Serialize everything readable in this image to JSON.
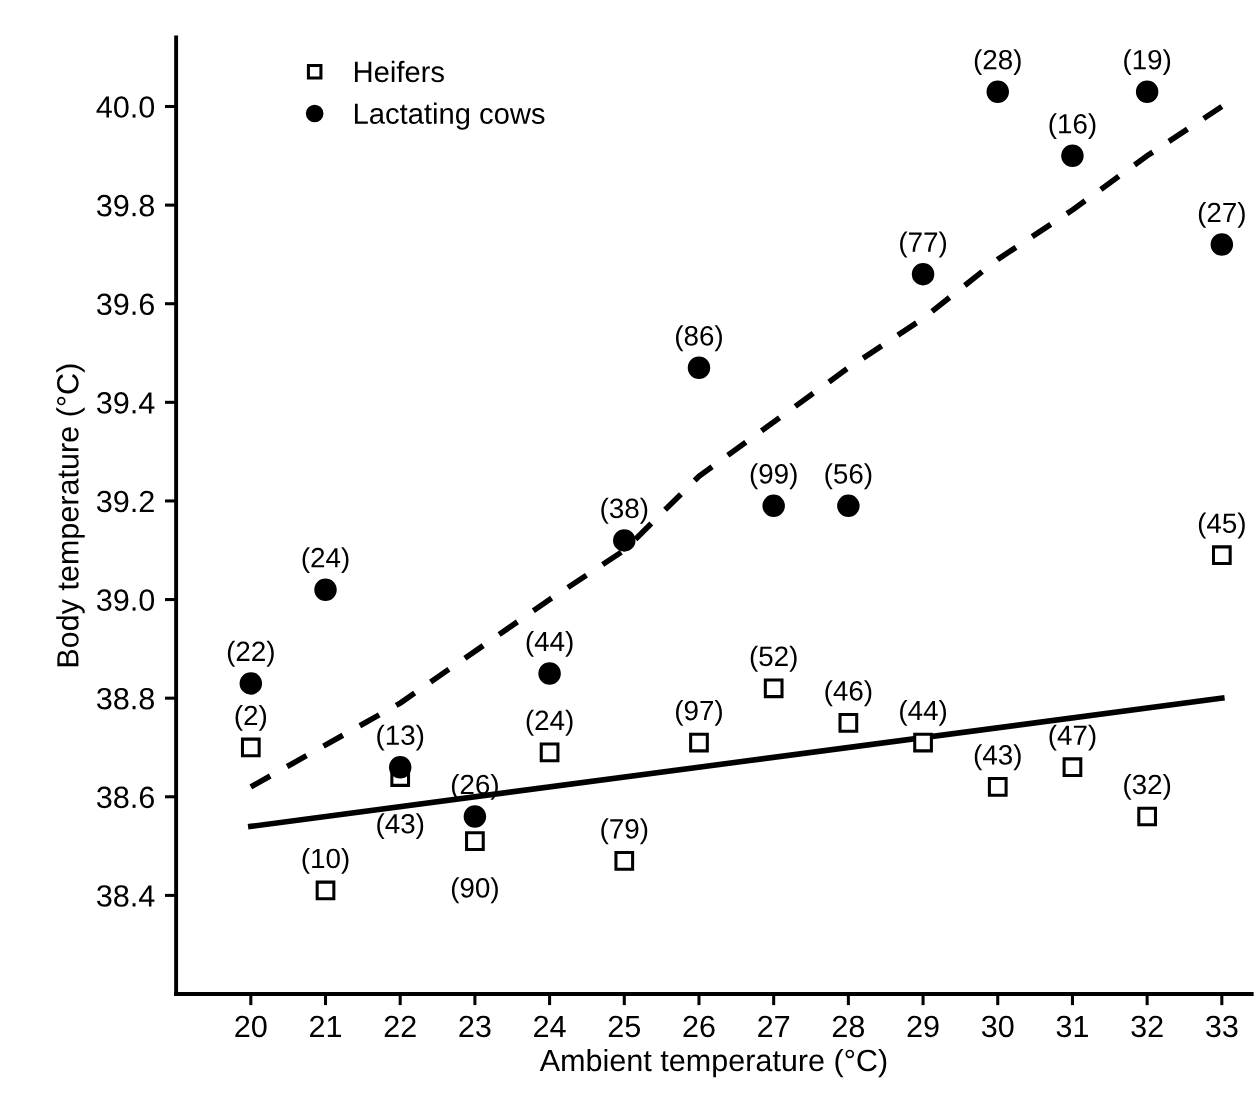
{
  "chart_data": {
    "type": "scatter",
    "xlabel": "Ambient temperature (°C)",
    "ylabel": "Body temperature (°C)",
    "xlim": [
      19,
      33.4
    ],
    "ylim": [
      38.2,
      40.14
    ],
    "xticks": [
      20,
      21,
      22,
      23,
      24,
      25,
      26,
      27,
      28,
      29,
      30,
      31,
      32,
      33
    ],
    "yticks": [
      {
        "value": 38.4,
        "label": "38.4"
      },
      {
        "value": 38.6,
        "label": "38.6"
      },
      {
        "value": 38.8,
        "label": "38.8"
      },
      {
        "value": 39.0,
        "label": "39.0"
      },
      {
        "value": 39.2,
        "label": "39.2"
      },
      {
        "value": 39.4,
        "label": "39.4"
      },
      {
        "value": 39.6,
        "label": "39.6"
      },
      {
        "value": 39.8,
        "label": "39.8"
      },
      {
        "value": 40.0,
        "label": "40.0"
      }
    ],
    "grid": false,
    "legend": "top left",
    "series": [
      {
        "name": "Heifers",
        "marker": "square",
        "color": "#000000",
        "x": [
          20,
          21,
          22,
          23,
          24,
          25,
          26,
          27,
          28,
          29,
          30,
          31,
          32,
          33
        ],
        "values": [
          38.7,
          38.41,
          38.64,
          38.51,
          38.69,
          38.47,
          38.71,
          38.82,
          38.75,
          38.71,
          38.62,
          38.66,
          38.56,
          39.09
        ]
      },
      {
        "name": "Lactating cows",
        "marker": "circle",
        "color": "#000000",
        "x": [
          20,
          21,
          22,
          23,
          24,
          25,
          26,
          27,
          28,
          29,
          30,
          31,
          32,
          33
        ],
        "values": [
          38.83,
          39.02,
          38.66,
          38.56,
          38.85,
          39.12,
          39.47,
          39.19,
          39.19,
          39.66,
          40.03,
          39.9,
          40.03,
          39.72
        ]
      },
      {
        "type": "line",
        "line_style": "solid",
        "marker": "none",
        "color": "#000000",
        "x": [
          20,
          33
        ],
        "values": [
          38.54,
          38.8
        ]
      },
      {
        "type": "line",
        "line_style": "dashed",
        "marker": "none",
        "color": "#000000",
        "x": [
          20,
          22,
          24,
          25,
          26,
          27,
          28,
          29,
          30,
          31,
          32,
          33
        ],
        "values": [
          38.62,
          38.79,
          39.0,
          39.1,
          39.25,
          39.36,
          39.47,
          39.57,
          39.69,
          39.79,
          39.9,
          40.0
        ]
      }
    ],
    "annotations": [
      {
        "text": "(2)",
        "x": 20,
        "y": 38.7
      },
      {
        "text": "(10)",
        "x": 21,
        "y": 38.41
      },
      {
        "text": "(43)",
        "x": 22,
        "y": 38.64
      },
      {
        "text": "(90)",
        "x": 23,
        "y": 38.51
      },
      {
        "text": "(24)",
        "x": 24,
        "y": 38.69
      },
      {
        "text": "(79)",
        "x": 25,
        "y": 38.47
      },
      {
        "text": "(97)",
        "x": 26,
        "y": 38.71
      },
      {
        "text": "(52)",
        "x": 27,
        "y": 38.82
      },
      {
        "text": "(46)",
        "x": 28,
        "y": 38.75
      },
      {
        "text": "(44)",
        "x": 29,
        "y": 38.71
      },
      {
        "text": "(43)",
        "x": 30,
        "y": 38.62
      },
      {
        "text": "(47)",
        "x": 31,
        "y": 38.66
      },
      {
        "text": "(32)",
        "x": 32,
        "y": 38.56
      },
      {
        "text": "(45)",
        "x": 33,
        "y": 39.09
      },
      {
        "text": "(22)",
        "x": 20,
        "y": 38.83
      },
      {
        "text": "(24)",
        "x": 21,
        "y": 39.02
      },
      {
        "text": "(13)",
        "x": 22,
        "y": 38.66
      },
      {
        "text": "(26)",
        "x": 23,
        "y": 38.56
      },
      {
        "text": "(44)",
        "x": 24,
        "y": 38.85
      },
      {
        "text": "(38)",
        "x": 25,
        "y": 39.12
      },
      {
        "text": "(86)",
        "x": 26,
        "y": 39.47
      },
      {
        "text": "(99)",
        "x": 27,
        "y": 39.19
      },
      {
        "text": "(56)",
        "x": 28,
        "y": 39.19
      },
      {
        "text": "(77)",
        "x": 29,
        "y": 39.66
      },
      {
        "text": "(28)",
        "x": 30,
        "y": 40.03
      },
      {
        "text": "(16)",
        "x": 31,
        "y": 39.9
      },
      {
        "text": "(19)",
        "x": 32,
        "y": 40.03
      },
      {
        "text": "(27)",
        "x": 33,
        "y": 39.72
      }
    ]
  }
}
